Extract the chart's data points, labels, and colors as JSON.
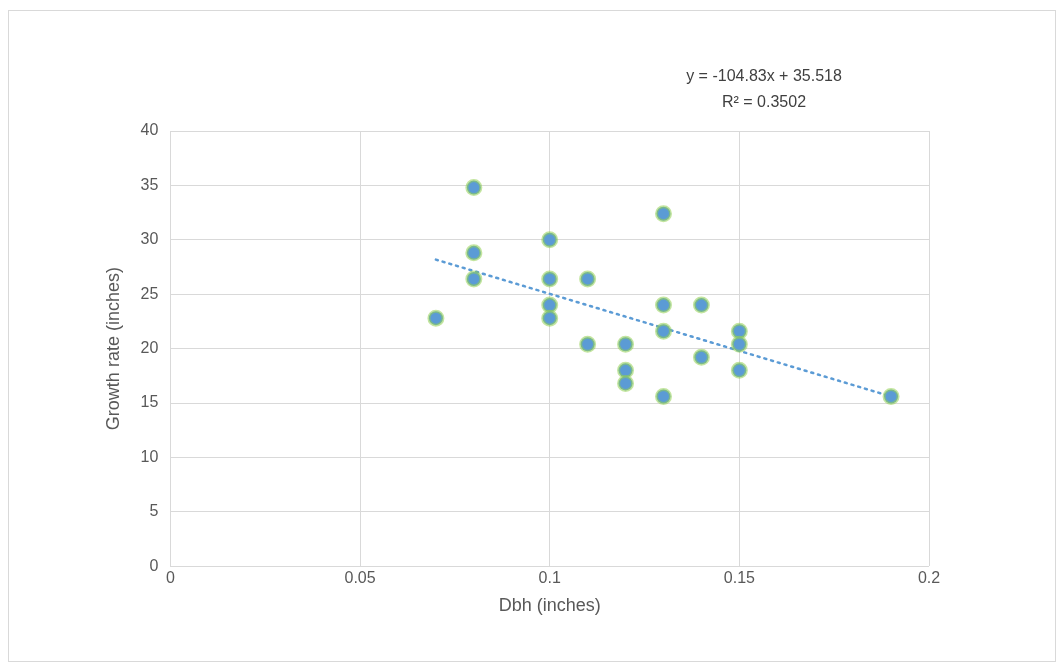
{
  "chart_data": {
    "type": "scatter",
    "xlabel": "Dbh (inches)",
    "ylabel": "Growth rate (inches)",
    "xlim": [
      0,
      0.2
    ],
    "xticks": [
      0,
      0.05,
      0.1,
      0.15,
      0.2
    ],
    "ylim": [
      0,
      40
    ],
    "yticks": [
      0,
      5,
      10,
      15,
      20,
      25,
      30,
      35,
      40
    ],
    "grid": true,
    "legend": false,
    "marker": "circle",
    "annotations": [
      "y = -104.83x + 35.518",
      "R² = 0.3502"
    ],
    "series": [
      {
        "color": "#5b9bd5",
        "x": [
          0.07,
          0.08,
          0.08,
          0.08,
          0.1,
          0.1,
          0.1,
          0.1,
          0.11,
          0.11,
          0.12,
          0.12,
          0.12,
          0.13,
          0.13,
          0.13,
          0.13,
          0.14,
          0.14,
          0.15,
          0.15,
          0.15,
          0.19
        ],
        "values": [
          22.8,
          34.8,
          28.8,
          26.4,
          30,
          26.4,
          24,
          22.8,
          26.4,
          20.4,
          20.4,
          18,
          16.8,
          32.4,
          24,
          21.6,
          15.6,
          24,
          19.2,
          21.6,
          20.4,
          18,
          15.6
        ]
      },
      {
        "type": "line",
        "color": "#5b9bd5",
        "line_style": "dotted",
        "marker": "none",
        "x": [
          0.07,
          0.19
        ],
        "values": [
          28.18,
          15.6
        ]
      }
    ]
  }
}
